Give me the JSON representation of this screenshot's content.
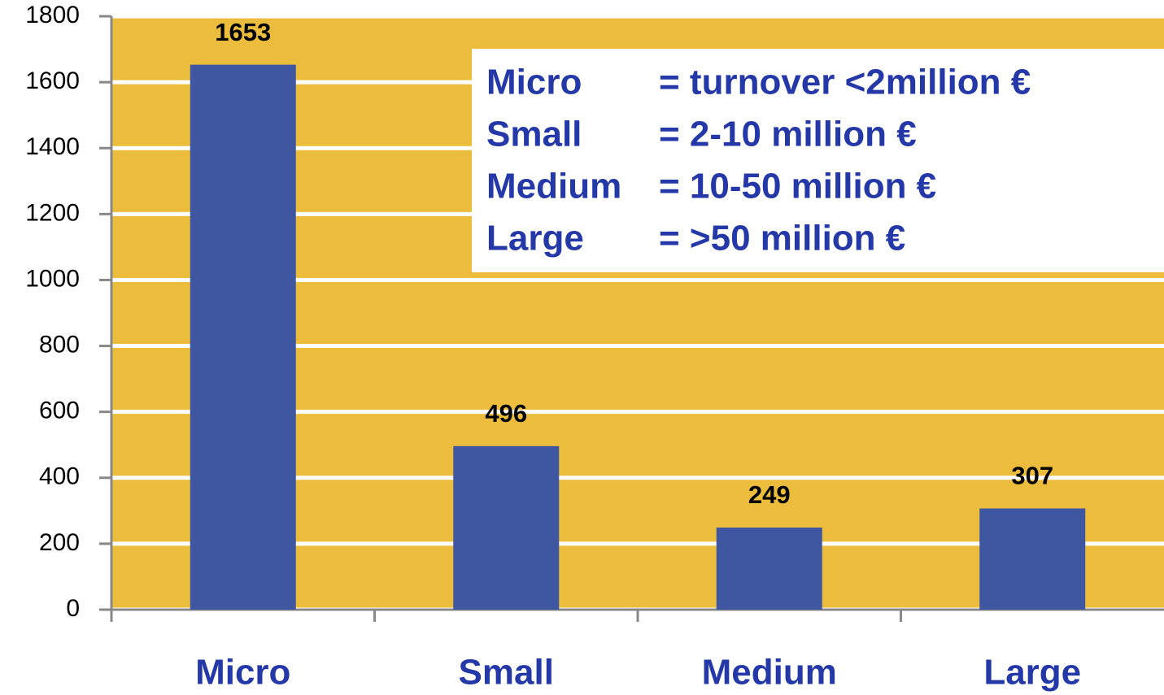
{
  "chart_data": {
    "type": "bar",
    "categories": [
      "Micro",
      "Small",
      "Medium",
      "Large"
    ],
    "values": [
      1653,
      496,
      249,
      307
    ],
    "color": "#3f57a0",
    "background": "#ecbd3c",
    "ylim": [
      0,
      1800
    ],
    "yticks": [
      0,
      200,
      400,
      600,
      800,
      1000,
      1200,
      1400,
      1600,
      1800
    ],
    "grid": true,
    "annotations": [
      [
        "Micro",
        "= turnover <2million €"
      ],
      [
        "Small",
        "= 2-10 million €"
      ],
      [
        "Medium",
        "= 10-50 million €"
      ],
      [
        "Large",
        "= >50 million €"
      ]
    ]
  }
}
